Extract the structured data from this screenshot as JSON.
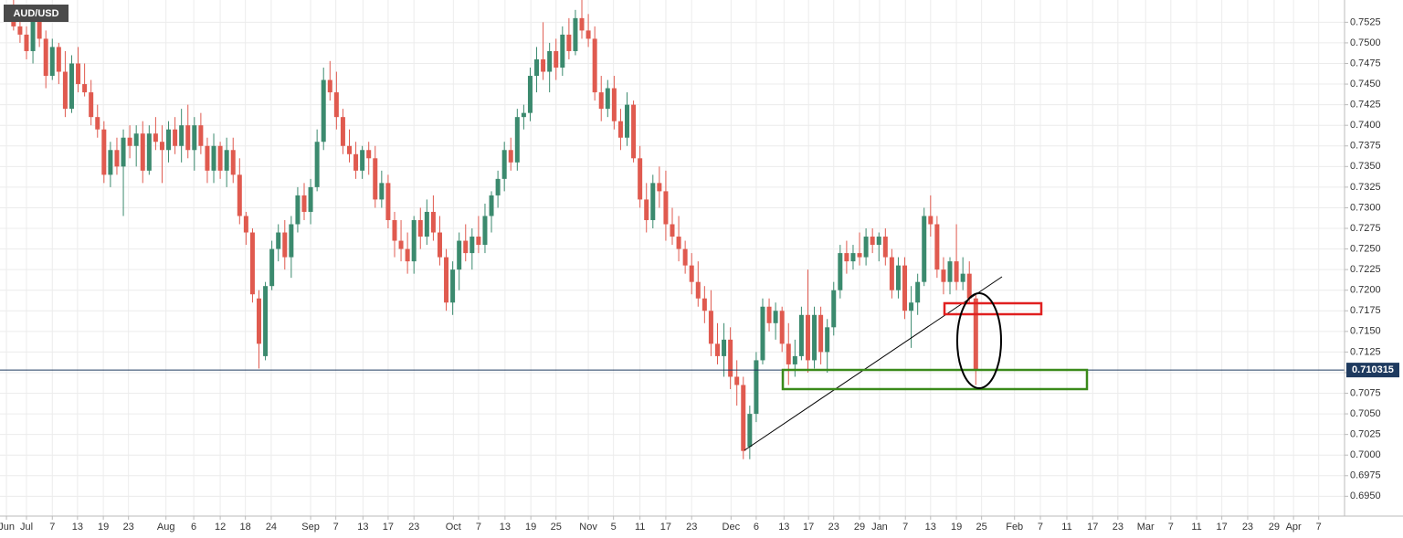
{
  "chart_data": {
    "type": "candlestick",
    "title": "AUD/USD",
    "up_color": "#3b8a6e",
    "down_color": "#e05a4f",
    "grid": true,
    "last_price": 0.710315,
    "last_price_color": "#1e3a5f",
    "xlim": [
      -4.1,
      204.1
    ],
    "ylim": [
      0.6926,
      0.7552
    ],
    "xticks": [
      {
        "value": -3.1,
        "label": "Jun"
      },
      {
        "value": 0,
        "label": "Jul"
      },
      {
        "value": 4.0,
        "label": "7"
      },
      {
        "value": 7.9,
        "label": "13"
      },
      {
        "value": 11.9,
        "label": "19"
      },
      {
        "value": 15.8,
        "label": "23"
      },
      {
        "value": 21.6,
        "label": "Aug"
      },
      {
        "value": 25.9,
        "label": "6"
      },
      {
        "value": 30.0,
        "label": "12"
      },
      {
        "value": 33.9,
        "label": "18"
      },
      {
        "value": 37.9,
        "label": "24"
      },
      {
        "value": 44.0,
        "label": "Sep"
      },
      {
        "value": 47.9,
        "label": "7"
      },
      {
        "value": 52.1,
        "label": "13"
      },
      {
        "value": 56.0,
        "label": "17"
      },
      {
        "value": 60.0,
        "label": "23"
      },
      {
        "value": 66.1,
        "label": "Oct"
      },
      {
        "value": 70.0,
        "label": "7"
      },
      {
        "value": 74.1,
        "label": "13"
      },
      {
        "value": 78.1,
        "label": "19"
      },
      {
        "value": 82.0,
        "label": "25"
      },
      {
        "value": 87.0,
        "label": "Nov"
      },
      {
        "value": 90.9,
        "label": "5"
      },
      {
        "value": 95.0,
        "label": "11"
      },
      {
        "value": 99.0,
        "label": "17"
      },
      {
        "value": 103.0,
        "label": "23"
      },
      {
        "value": 109.1,
        "label": "Dec"
      },
      {
        "value": 113.0,
        "label": "6"
      },
      {
        "value": 117.3,
        "label": "13"
      },
      {
        "value": 121.1,
        "label": "17"
      },
      {
        "value": 125.0,
        "label": "23"
      },
      {
        "value": 129.0,
        "label": "29"
      },
      {
        "value": 132.1,
        "label": "Jan"
      },
      {
        "value": 136.1,
        "label": "7"
      },
      {
        "value": 140.0,
        "label": "13"
      },
      {
        "value": 144.0,
        "label": "19"
      },
      {
        "value": 147.9,
        "label": "25"
      },
      {
        "value": 153.0,
        "label": "Feb"
      },
      {
        "value": 157.0,
        "label": "7"
      },
      {
        "value": 161.1,
        "label": "11"
      },
      {
        "value": 165.1,
        "label": "17"
      },
      {
        "value": 169.0,
        "label": "23"
      },
      {
        "value": 173.3,
        "label": "Mar"
      },
      {
        "value": 177.2,
        "label": "7"
      },
      {
        "value": 181.2,
        "label": "11"
      },
      {
        "value": 185.1,
        "label": "17"
      },
      {
        "value": 189.1,
        "label": "23"
      },
      {
        "value": 193.2,
        "label": "29"
      },
      {
        "value": 196.2,
        "label": "Apr"
      },
      {
        "value": 200.1,
        "label": "7"
      }
    ],
    "yticks": [
      {
        "value": 0.695,
        "label": "0.6950"
      },
      {
        "value": 0.6975,
        "label": "0.6975"
      },
      {
        "value": 0.7,
        "label": "0.7000"
      },
      {
        "value": 0.7025,
        "label": "0.7025"
      },
      {
        "value": 0.705,
        "label": "0.7050"
      },
      {
        "value": 0.7075,
        "label": "0.7075"
      },
      {
        "value": 0.71,
        "label": "0.7100"
      },
      {
        "value": 0.7125,
        "label": "0.7125"
      },
      {
        "value": 0.715,
        "label": "0.7150"
      },
      {
        "value": 0.7175,
        "label": "0.7175"
      },
      {
        "value": 0.72,
        "label": "0.7200"
      },
      {
        "value": 0.7225,
        "label": "0.7225"
      },
      {
        "value": 0.725,
        "label": "0.7250"
      },
      {
        "value": 0.7275,
        "label": "0.7275"
      },
      {
        "value": 0.73,
        "label": "0.7300"
      },
      {
        "value": 0.7325,
        "label": "0.7325"
      },
      {
        "value": 0.735,
        "label": "0.7350"
      },
      {
        "value": 0.7375,
        "label": "0.7375"
      },
      {
        "value": 0.74,
        "label": "0.7400"
      },
      {
        "value": 0.7425,
        "label": "0.7425"
      },
      {
        "value": 0.745,
        "label": "0.7450"
      },
      {
        "value": 0.7475,
        "label": "0.7475"
      },
      {
        "value": 0.75,
        "label": "0.7500"
      },
      {
        "value": 0.7525,
        "label": "0.7525"
      }
    ],
    "x": [
      -2,
      -1,
      0,
      1,
      2,
      3,
      4,
      5,
      6,
      7,
      8,
      9,
      10,
      11,
      12,
      13,
      14,
      15,
      16,
      17,
      18,
      19,
      20,
      21,
      22,
      23,
      24,
      25,
      26,
      27,
      28,
      29,
      30,
      31,
      32,
      33,
      34,
      35,
      36,
      37,
      38,
      39,
      40,
      41,
      42,
      43,
      44,
      45,
      46,
      47,
      48,
      49,
      50,
      51,
      52,
      53,
      54,
      55,
      56,
      57,
      58,
      59,
      60,
      61,
      62,
      63,
      64,
      65,
      66,
      67,
      68,
      69,
      70,
      71,
      72,
      73,
      74,
      75,
      76,
      77,
      78,
      79,
      80,
      81,
      82,
      83,
      84,
      85,
      86,
      87,
      88,
      89,
      90,
      91,
      92,
      93,
      94,
      95,
      96,
      97,
      98,
      99,
      100,
      101,
      102,
      103,
      104,
      105,
      106,
      107,
      108,
      109,
      110,
      111,
      112,
      113,
      114,
      115,
      116,
      117,
      118,
      119,
      120,
      121,
      122,
      123,
      124,
      125,
      126,
      127,
      128,
      129,
      130,
      131,
      132,
      133,
      134,
      135,
      136,
      137,
      138,
      139,
      140,
      141,
      142,
      143,
      144,
      145,
      146,
      147
    ],
    "ohlc": [
      [
        0.7545,
        0.7555,
        0.7515,
        0.752
      ],
      [
        0.752,
        0.753,
        0.75,
        0.751
      ],
      [
        0.751,
        0.752,
        0.748,
        0.749
      ],
      [
        0.749,
        0.7545,
        0.7475,
        0.753
      ],
      [
        0.753,
        0.754,
        0.7495,
        0.7505
      ],
      [
        0.7505,
        0.7515,
        0.7445,
        0.746
      ],
      [
        0.746,
        0.7505,
        0.7455,
        0.7495
      ],
      [
        0.7495,
        0.75,
        0.745,
        0.7465
      ],
      [
        0.7465,
        0.749,
        0.741,
        0.742
      ],
      [
        0.742,
        0.7485,
        0.7415,
        0.7475
      ],
      [
        0.7475,
        0.7495,
        0.744,
        0.745
      ],
      [
        0.745,
        0.7475,
        0.7435,
        0.744
      ],
      [
        0.744,
        0.7455,
        0.74,
        0.741
      ],
      [
        0.741,
        0.7425,
        0.7385,
        0.7395
      ],
      [
        0.7395,
        0.7405,
        0.733,
        0.734
      ],
      [
        0.734,
        0.738,
        0.7325,
        0.737
      ],
      [
        0.737,
        0.7385,
        0.734,
        0.735
      ],
      [
        0.735,
        0.7395,
        0.729,
        0.7385
      ],
      [
        0.7385,
        0.74,
        0.736,
        0.7375
      ],
      [
        0.7375,
        0.74,
        0.735,
        0.739
      ],
      [
        0.739,
        0.7405,
        0.733,
        0.7345
      ],
      [
        0.7345,
        0.74,
        0.734,
        0.739
      ],
      [
        0.739,
        0.741,
        0.737,
        0.738
      ],
      [
        0.738,
        0.74,
        0.733,
        0.737
      ],
      [
        0.737,
        0.7405,
        0.7355,
        0.7395
      ],
      [
        0.7395,
        0.741,
        0.7365,
        0.7375
      ],
      [
        0.7375,
        0.742,
        0.7355,
        0.74
      ],
      [
        0.74,
        0.7425,
        0.736,
        0.737
      ],
      [
        0.737,
        0.741,
        0.7345,
        0.74
      ],
      [
        0.74,
        0.7415,
        0.7365,
        0.7375
      ],
      [
        0.7375,
        0.7385,
        0.733,
        0.7345
      ],
      [
        0.7345,
        0.739,
        0.733,
        0.7375
      ],
      [
        0.7375,
        0.738,
        0.7335,
        0.7345
      ],
      [
        0.7345,
        0.7385,
        0.7325,
        0.737
      ],
      [
        0.737,
        0.7385,
        0.733,
        0.734
      ],
      [
        0.734,
        0.736,
        0.728,
        0.729
      ],
      [
        0.729,
        0.7295,
        0.7255,
        0.727
      ],
      [
        0.727,
        0.7275,
        0.7185,
        0.7195
      ],
      [
        0.719,
        0.72,
        0.7105,
        0.7135
      ],
      [
        0.712,
        0.721,
        0.7115,
        0.7205
      ],
      [
        0.7205,
        0.726,
        0.72,
        0.725
      ],
      [
        0.725,
        0.728,
        0.7235,
        0.727
      ],
      [
        0.727,
        0.7285,
        0.7225,
        0.724
      ],
      [
        0.724,
        0.729,
        0.7215,
        0.728
      ],
      [
        0.728,
        0.7325,
        0.727,
        0.7315
      ],
      [
        0.7315,
        0.733,
        0.7285,
        0.7295
      ],
      [
        0.7295,
        0.7335,
        0.728,
        0.7325
      ],
      [
        0.7325,
        0.7395,
        0.732,
        0.738
      ],
      [
        0.738,
        0.747,
        0.737,
        0.7455
      ],
      [
        0.7455,
        0.7478,
        0.743,
        0.744
      ],
      [
        0.744,
        0.7465,
        0.7395,
        0.741
      ],
      [
        0.741,
        0.742,
        0.7365,
        0.7375
      ],
      [
        0.7375,
        0.7395,
        0.7355,
        0.7365
      ],
      [
        0.7365,
        0.738,
        0.7335,
        0.7345
      ],
      [
        0.7345,
        0.7375,
        0.7335,
        0.737
      ],
      [
        0.737,
        0.738,
        0.734,
        0.736
      ],
      [
        0.736,
        0.7375,
        0.73,
        0.731
      ],
      [
        0.731,
        0.7345,
        0.73,
        0.733
      ],
      [
        0.733,
        0.734,
        0.7275,
        0.7285
      ],
      [
        0.7285,
        0.7295,
        0.724,
        0.726
      ],
      [
        0.726,
        0.7285,
        0.7235,
        0.725
      ],
      [
        0.725,
        0.727,
        0.722,
        0.7235
      ],
      [
        0.7235,
        0.729,
        0.722,
        0.7285
      ],
      [
        0.7285,
        0.73,
        0.725,
        0.7265
      ],
      [
        0.7265,
        0.731,
        0.7255,
        0.7295
      ],
      [
        0.7295,
        0.7315,
        0.726,
        0.727
      ],
      [
        0.727,
        0.729,
        0.723,
        0.724
      ],
      [
        0.724,
        0.725,
        0.7175,
        0.7185
      ],
      [
        0.7185,
        0.7235,
        0.717,
        0.7225
      ],
      [
        0.7225,
        0.727,
        0.72,
        0.726
      ],
      [
        0.726,
        0.728,
        0.7235,
        0.7245
      ],
      [
        0.7245,
        0.7275,
        0.7225,
        0.7265
      ],
      [
        0.7265,
        0.729,
        0.7245,
        0.7255
      ],
      [
        0.7255,
        0.7305,
        0.7245,
        0.729
      ],
      [
        0.729,
        0.732,
        0.727,
        0.7315
      ],
      [
        0.7315,
        0.7345,
        0.73,
        0.7335
      ],
      [
        0.7335,
        0.738,
        0.732,
        0.737
      ],
      [
        0.737,
        0.7385,
        0.7345,
        0.7355
      ],
      [
        0.7355,
        0.742,
        0.7345,
        0.741
      ],
      [
        0.741,
        0.7425,
        0.7395,
        0.7415
      ],
      [
        0.7415,
        0.747,
        0.7405,
        0.746
      ],
      [
        0.746,
        0.7495,
        0.744,
        0.748
      ],
      [
        0.748,
        0.7525,
        0.7455,
        0.7465
      ],
      [
        0.7465,
        0.75,
        0.744,
        0.749
      ],
      [
        0.749,
        0.7505,
        0.7455,
        0.747
      ],
      [
        0.747,
        0.752,
        0.746,
        0.751
      ],
      [
        0.751,
        0.753,
        0.748,
        0.749
      ],
      [
        0.749,
        0.754,
        0.7485,
        0.753
      ],
      [
        0.753,
        0.7555,
        0.7505,
        0.7515
      ],
      [
        0.7515,
        0.7535,
        0.7495,
        0.7505
      ],
      [
        0.7505,
        0.752,
        0.743,
        0.744
      ],
      [
        0.744,
        0.746,
        0.7405,
        0.742
      ],
      [
        0.742,
        0.7455,
        0.741,
        0.7445
      ],
      [
        0.7445,
        0.746,
        0.7395,
        0.7405
      ],
      [
        0.7405,
        0.742,
        0.737,
        0.7385
      ],
      [
        0.7385,
        0.744,
        0.7375,
        0.7425
      ],
      [
        0.7425,
        0.743,
        0.7355,
        0.736
      ],
      [
        0.736,
        0.7375,
        0.73,
        0.731
      ],
      [
        0.731,
        0.733,
        0.727,
        0.7285
      ],
      [
        0.7285,
        0.734,
        0.7275,
        0.733
      ],
      [
        0.733,
        0.735,
        0.73,
        0.732
      ],
      [
        0.732,
        0.7345,
        0.726,
        0.728
      ],
      [
        0.728,
        0.73,
        0.7255,
        0.7265
      ],
      [
        0.7265,
        0.729,
        0.7235,
        0.725
      ],
      [
        0.725,
        0.726,
        0.722,
        0.723
      ],
      [
        0.723,
        0.7245,
        0.7195,
        0.721
      ],
      [
        0.721,
        0.7235,
        0.718,
        0.719
      ],
      [
        0.719,
        0.7205,
        0.716,
        0.7175
      ],
      [
        0.7175,
        0.72,
        0.712,
        0.7135
      ],
      [
        0.7135,
        0.716,
        0.711,
        0.712
      ],
      [
        0.712,
        0.716,
        0.7095,
        0.714
      ],
      [
        0.714,
        0.7155,
        0.708,
        0.7095
      ],
      [
        0.7095,
        0.7115,
        0.706,
        0.7085
      ],
      [
        0.7085,
        0.7095,
        0.6995,
        0.7005
      ],
      [
        0.701,
        0.706,
        0.6995,
        0.705
      ],
      [
        0.705,
        0.7125,
        0.704,
        0.7115
      ],
      [
        0.7115,
        0.719,
        0.711,
        0.718
      ],
      [
        0.718,
        0.719,
        0.715,
        0.716
      ],
      [
        0.716,
        0.7185,
        0.714,
        0.7175
      ],
      [
        0.7175,
        0.718,
        0.7125,
        0.7135
      ],
      [
        0.7135,
        0.716,
        0.7085,
        0.711
      ],
      [
        0.711,
        0.714,
        0.7095,
        0.712
      ],
      [
        0.712,
        0.718,
        0.7115,
        0.717
      ],
      [
        0.717,
        0.7225,
        0.71,
        0.7115
      ],
      [
        0.7115,
        0.718,
        0.7105,
        0.717
      ],
      [
        0.717,
        0.718,
        0.711,
        0.7125
      ],
      [
        0.7125,
        0.7165,
        0.71,
        0.7155
      ],
      [
        0.7155,
        0.721,
        0.7145,
        0.72
      ],
      [
        0.72,
        0.7255,
        0.719,
        0.7245
      ],
      [
        0.7245,
        0.726,
        0.722,
        0.7235
      ],
      [
        0.7235,
        0.7255,
        0.7225,
        0.7245
      ],
      [
        0.7245,
        0.727,
        0.723,
        0.724
      ],
      [
        0.724,
        0.7275,
        0.723,
        0.7265
      ],
      [
        0.7265,
        0.7275,
        0.7245,
        0.7255
      ],
      [
        0.7255,
        0.727,
        0.7235,
        0.7265
      ],
      [
        0.7265,
        0.7275,
        0.723,
        0.724
      ],
      [
        0.724,
        0.725,
        0.719,
        0.72
      ],
      [
        0.72,
        0.724,
        0.719,
        0.723
      ],
      [
        0.723,
        0.724,
        0.7165,
        0.7175
      ],
      [
        0.7175,
        0.7205,
        0.713,
        0.7185
      ],
      [
        0.7185,
        0.722,
        0.717,
        0.721
      ],
      [
        0.721,
        0.73,
        0.7205,
        0.729
      ],
      [
        0.729,
        0.7315,
        0.7265,
        0.728
      ],
      [
        0.728,
        0.729,
        0.7215,
        0.7225
      ],
      [
        0.7225,
        0.724,
        0.7195,
        0.721
      ],
      [
        0.721,
        0.724,
        0.7195,
        0.7235
      ],
      [
        0.7235,
        0.728,
        0.72,
        0.721
      ],
      [
        0.721,
        0.724,
        0.72,
        0.722
      ],
      [
        0.722,
        0.7235,
        0.7185,
        0.719
      ],
      [
        0.719,
        0.7195,
        0.7085,
        0.7103
      ]
    ]
  }
}
